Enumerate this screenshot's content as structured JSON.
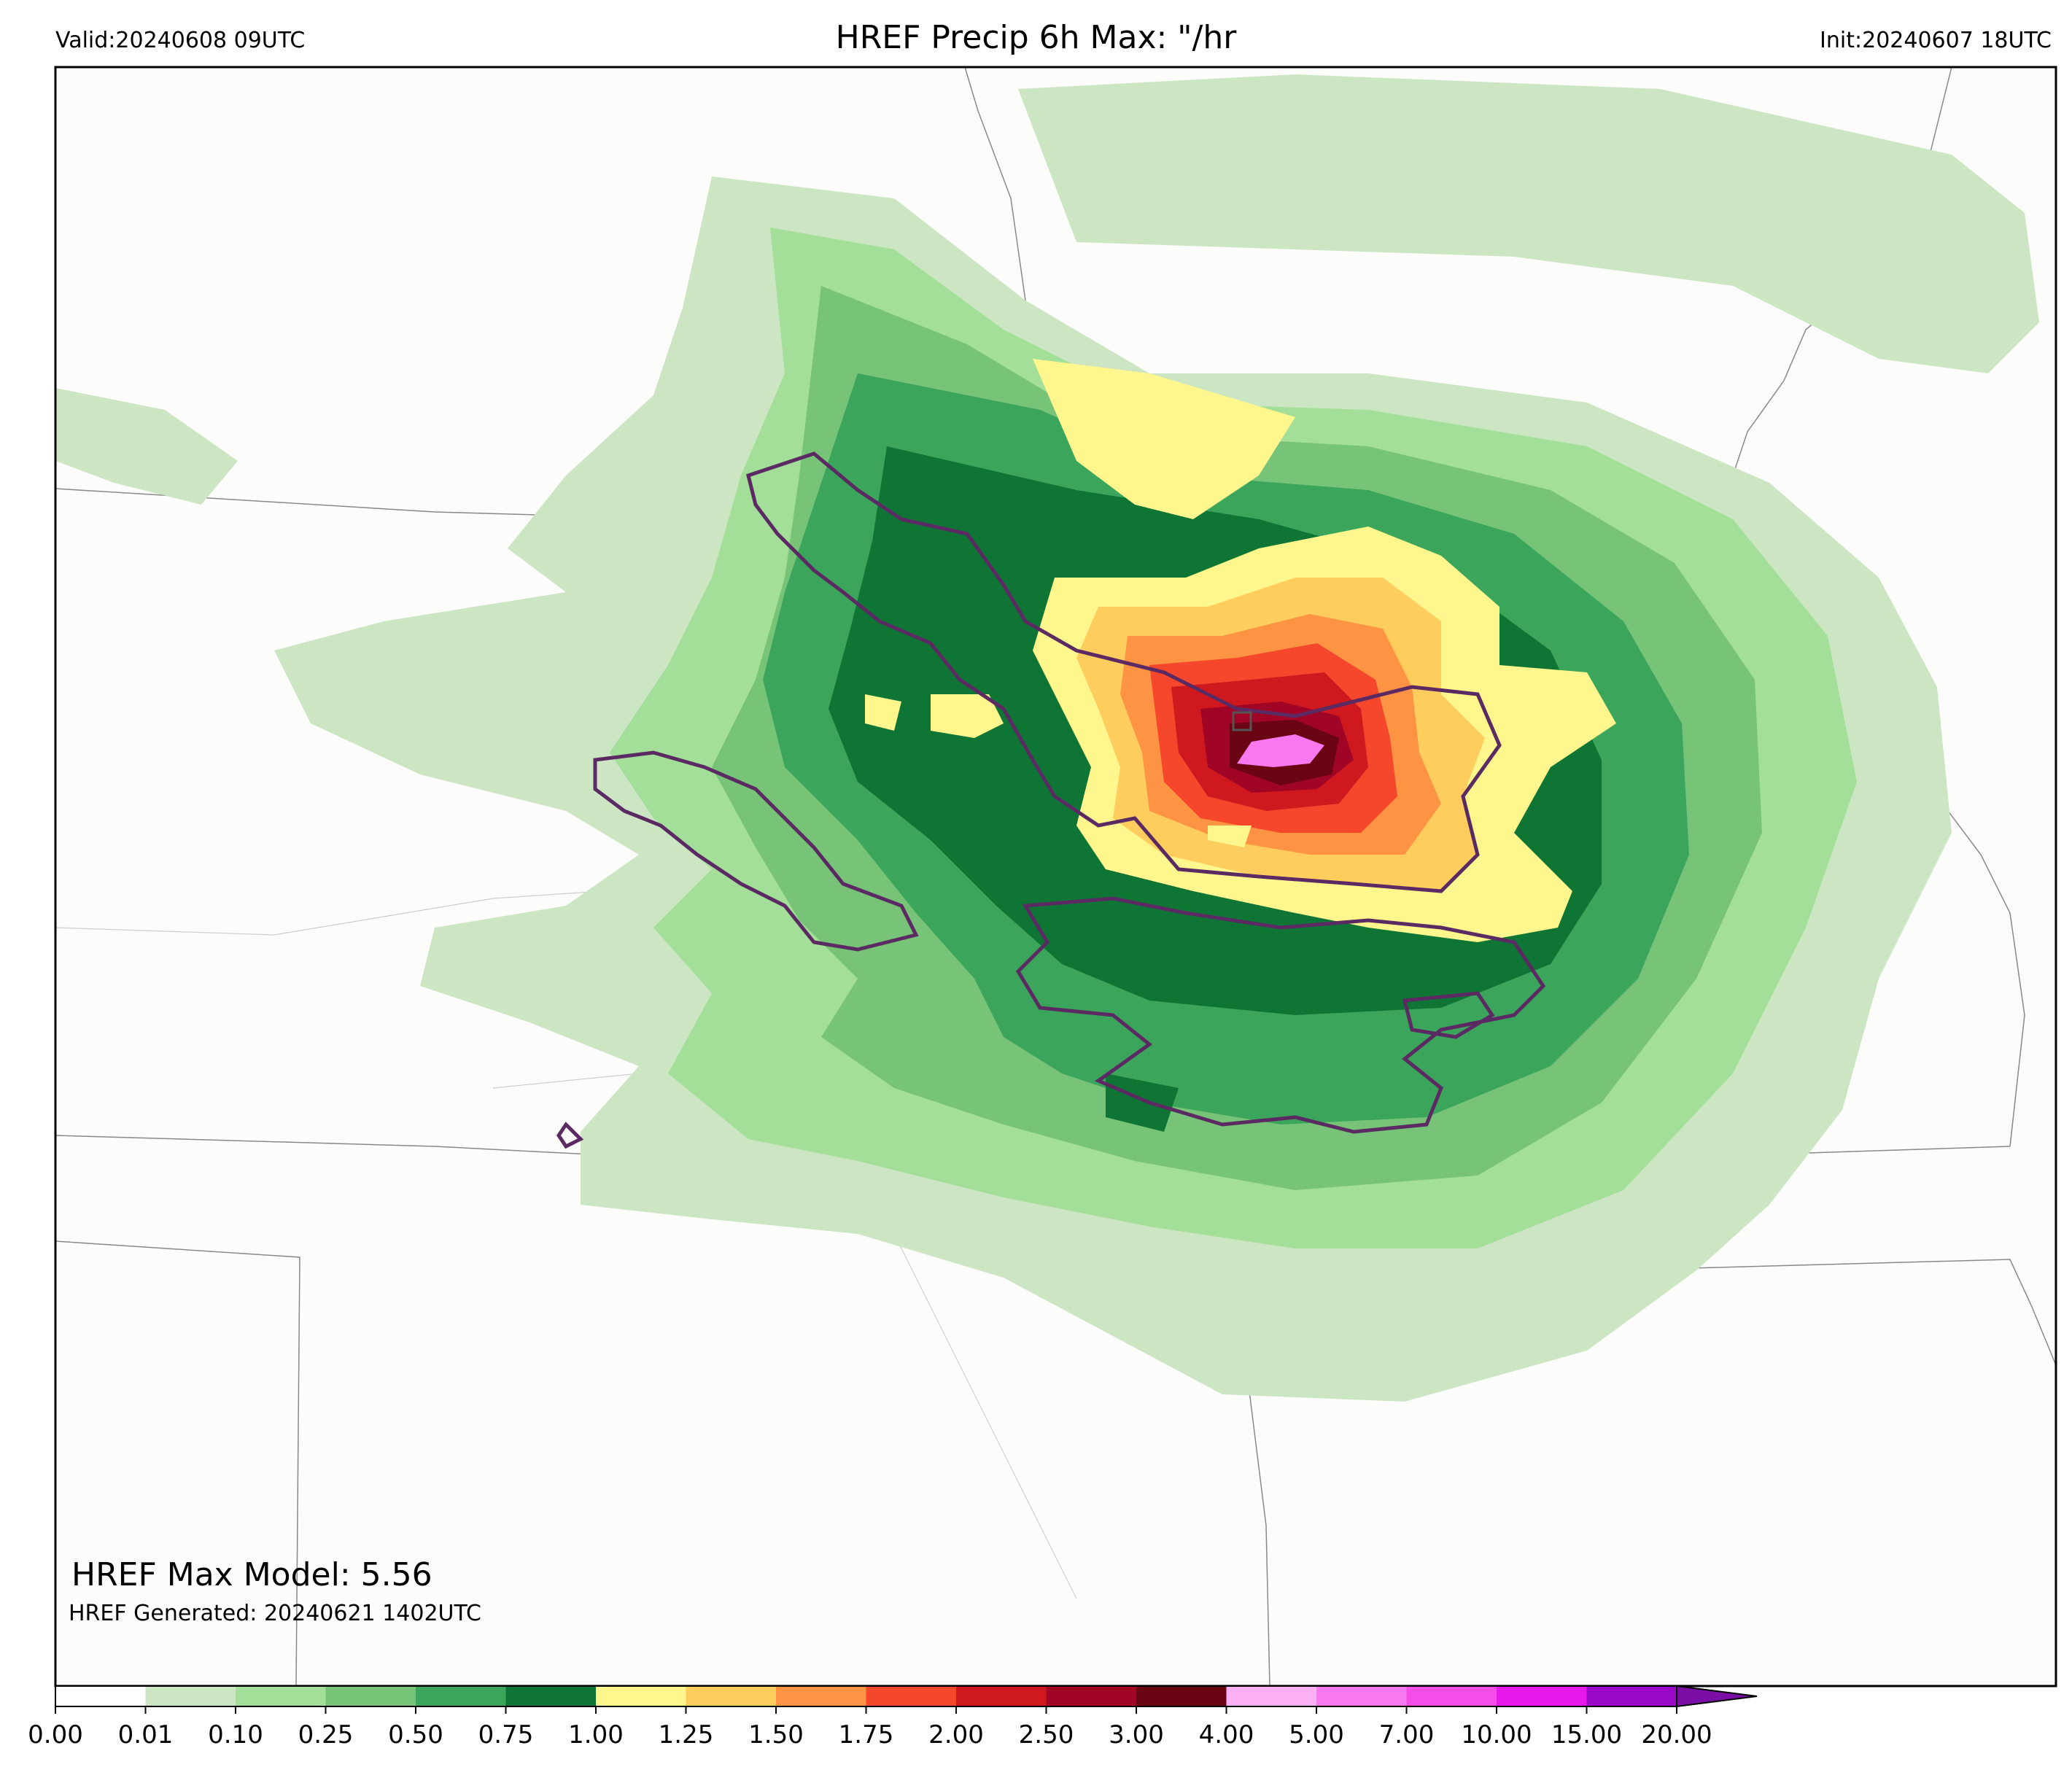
{
  "header": {
    "valid": "Valid:20240608 09UTC",
    "title": "HREF Precip 6h Max: \"/hr",
    "init": "Init:20240607 18UTC"
  },
  "annotations": {
    "max_model": "HREF Max Model: 5.56",
    "generated": "HREF Generated: 20240621 1402UTC"
  },
  "colorbar": {
    "ticks": [
      "0.00",
      "0.01",
      "0.10",
      "0.25",
      "0.50",
      "0.75",
      "1.00",
      "1.25",
      "1.50",
      "1.75",
      "2.00",
      "2.50",
      "3.00",
      "4.00",
      "5.00",
      "7.00",
      "10.00",
      "15.00",
      "20.00"
    ],
    "colors": [
      "#ffffff",
      "#cce6c4",
      "#a3df98",
      "#77c478",
      "#3ba55c",
      "#0f7535",
      "#fff68d",
      "#ffcd5e",
      "#fe9344",
      "#f4472c",
      "#d0181f",
      "#a10526",
      "#6b0513",
      "#fcb0f4",
      "#f878ef",
      "#f54ee8",
      "#e718ec",
      "#9b07c9"
    ],
    "extend_color": "#7b0fa5"
  },
  "map_colors": {
    "background": "#fcfcfa",
    "border": "#777777",
    "contour": "#5b2a63"
  }
}
